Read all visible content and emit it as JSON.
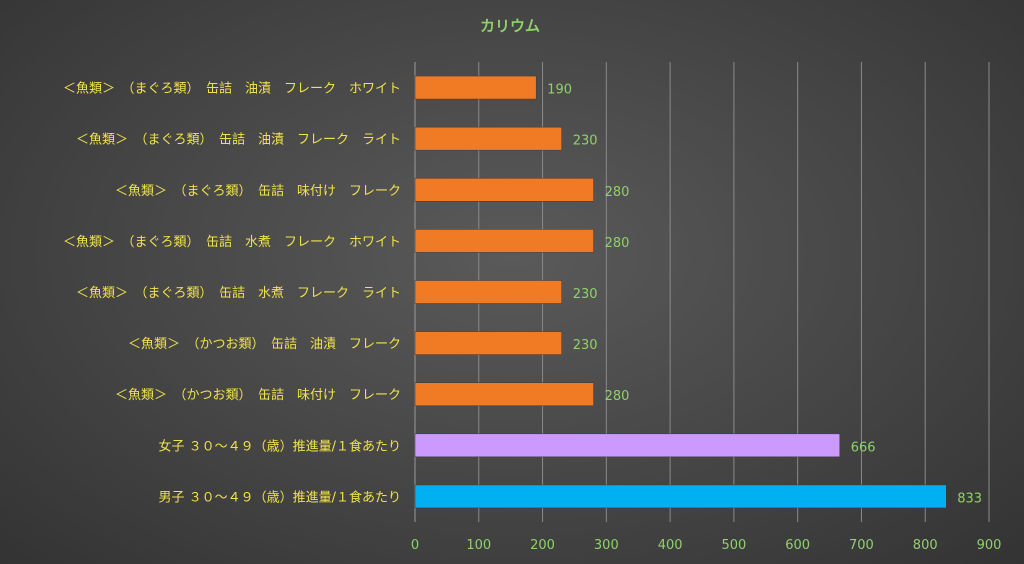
{
  "chart_data": {
    "type": "bar",
    "orientation": "horizontal",
    "title": "カリウム",
    "xlabel": "",
    "ylabel": "",
    "xlim": [
      0,
      900
    ],
    "ticks": [
      0,
      100,
      200,
      300,
      400,
      500,
      600,
      700,
      800,
      900
    ],
    "grid": true,
    "legend": "none",
    "categories": [
      "＜魚類＞　（まぐろ類）　缶詰　油漬　フレーク　ホワイト",
      "＜魚類＞　（まぐろ類）　缶詰　油漬　フレーク　ライト",
      "＜魚類＞　（まぐろ類）　缶詰　味付け　フレーク",
      "＜魚類＞　（まぐろ類）　缶詰　水煮　フレーク　ホワイト",
      "＜魚類＞　（まぐろ類）　缶詰　水煮　フレーク　ライト",
      "＜魚類＞　（かつお類）　缶詰　油漬　フレーク",
      "＜魚類＞　（かつお類）　缶詰　味付け　フレーク",
      "女子 ３０～４９（歳）推進量/１食あたり",
      "男子 ３０～４９（歳）推進量/１食あたり"
    ],
    "values": [
      190,
      230,
      280,
      280,
      230,
      230,
      280,
      666,
      833
    ],
    "bar_colors": [
      "#f07b24",
      "#f07b24",
      "#f07b24",
      "#f07b24",
      "#f07b24",
      "#f07b24",
      "#f07b24",
      "#cc99ff",
      "#00b0f0"
    ]
  },
  "colors": {
    "background": "#464646",
    "title": "#8fd16a",
    "category_text": "#f0e24a",
    "value_text": "#8fd16a",
    "grid": "#8a8a8a"
  }
}
